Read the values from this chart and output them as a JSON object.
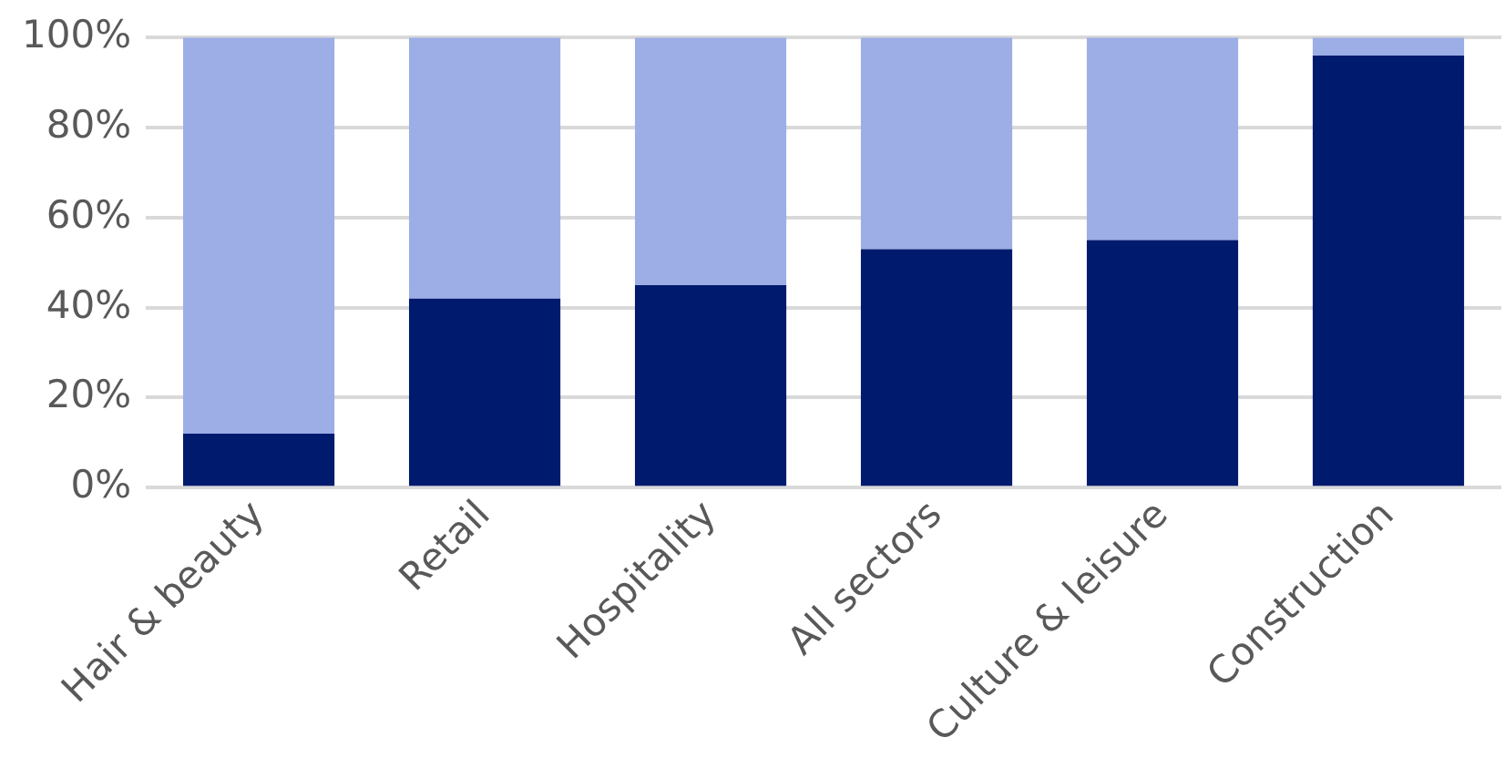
{
  "chart_data": {
    "type": "bar",
    "stacked": true,
    "categories": [
      "Hair & beauty",
      "Retail",
      "Hospitality",
      "All sectors",
      "Culture & leisure",
      "Construction"
    ],
    "series": [
      {
        "color": "#001a6e",
        "values": [
          12,
          42,
          45,
          53,
          55,
          96
        ]
      },
      {
        "color": "#9dade6",
        "values": [
          88,
          58,
          55,
          47,
          45,
          4
        ]
      }
    ],
    "ylim": [
      0,
      100
    ],
    "yticks": [
      {
        "value": 0,
        "label": "0%"
      },
      {
        "value": 20,
        "label": "20%"
      },
      {
        "value": 40,
        "label": "40%"
      },
      {
        "value": 60,
        "label": "60%"
      },
      {
        "value": 80,
        "label": "80%"
      },
      {
        "value": 100,
        "label": "100%"
      }
    ],
    "grid": "y",
    "legend": false
  }
}
